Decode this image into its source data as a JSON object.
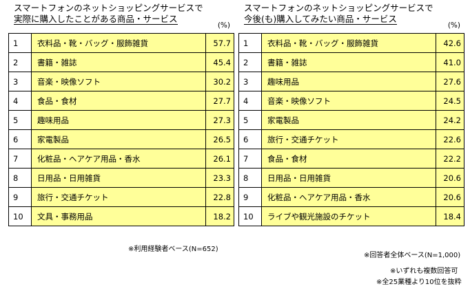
{
  "chart_data": [
    {
      "type": "table",
      "title": "スマートフォンのネットショッピングサービスで実際に購入したことがある商品・サービス",
      "title_lines": [
        "スマートフォンのネットショッピングサービスで",
        "実際に購入したことがある商品・サービス"
      ],
      "unit": "(%)",
      "rows": [
        {
          "rank": "1",
          "item": "衣料品・靴・バッグ・服飾雑貨",
          "value": 57.7
        },
        {
          "rank": "2",
          "item": "書籍・雑誌",
          "value": 45.4
        },
        {
          "rank": "3",
          "item": "音楽・映像ソフト",
          "value": 30.2
        },
        {
          "rank": "4",
          "item": "食品・食材",
          "value": 27.7
        },
        {
          "rank": "5",
          "item": "趣味用品",
          "value": 27.3
        },
        {
          "rank": "6",
          "item": "家電製品",
          "value": 26.5
        },
        {
          "rank": "7",
          "item": "化粧品・ヘアケア用品・香水",
          "value": 26.1
        },
        {
          "rank": "8",
          "item": "日用品・日用雑貨",
          "value": 23.3
        },
        {
          "rank": "9",
          "item": "旅行・交通チケット",
          "value": 22.8
        },
        {
          "rank": "10",
          "item": "文具・事務用品",
          "value": 18.2
        }
      ],
      "note": "※利用経験者ベース(N=652)"
    },
    {
      "type": "table",
      "title": "スマートフォンのネットショッピングサービスで今後(も)購入してみたい商品・サービス",
      "title_lines": [
        "スマートフォンのネットショッピングサービスで",
        "今後(も)購入してみたい商品・サービス"
      ],
      "unit": "(%)",
      "rows": [
        {
          "rank": "1",
          "item": "衣料品・靴・バッグ・服飾雑貨",
          "value": 42.6
        },
        {
          "rank": "2",
          "item": "書籍・雑誌",
          "value": 41.0
        },
        {
          "rank": "3",
          "item": "趣味用品",
          "value": 27.6
        },
        {
          "rank": "4",
          "item": "音楽・映像ソフト",
          "value": 24.5
        },
        {
          "rank": "5",
          "item": "家電製品",
          "value": 24.2
        },
        {
          "rank": "6",
          "item": "旅行・交通チケット",
          "value": 22.6
        },
        {
          "rank": "7",
          "item": "食品・食材",
          "value": 22.2
        },
        {
          "rank": "8",
          "item": "日用品・日用雑貨",
          "value": 20.6
        },
        {
          "rank": "9",
          "item": "化粧品・ヘアケア用品・香水",
          "value": 20.6
        },
        {
          "rank": "10",
          "item": "ライブや観光施設のチケット",
          "value": 18.4
        }
      ],
      "note": "※回答者全体ベース(N=1,000)"
    }
  ],
  "footnotes": [
    "※いずれも複数回答可",
    "※全25業種より10位を抜粋"
  ],
  "colors": {
    "cell_fill": "#ffff99",
    "border": "#000000"
  }
}
